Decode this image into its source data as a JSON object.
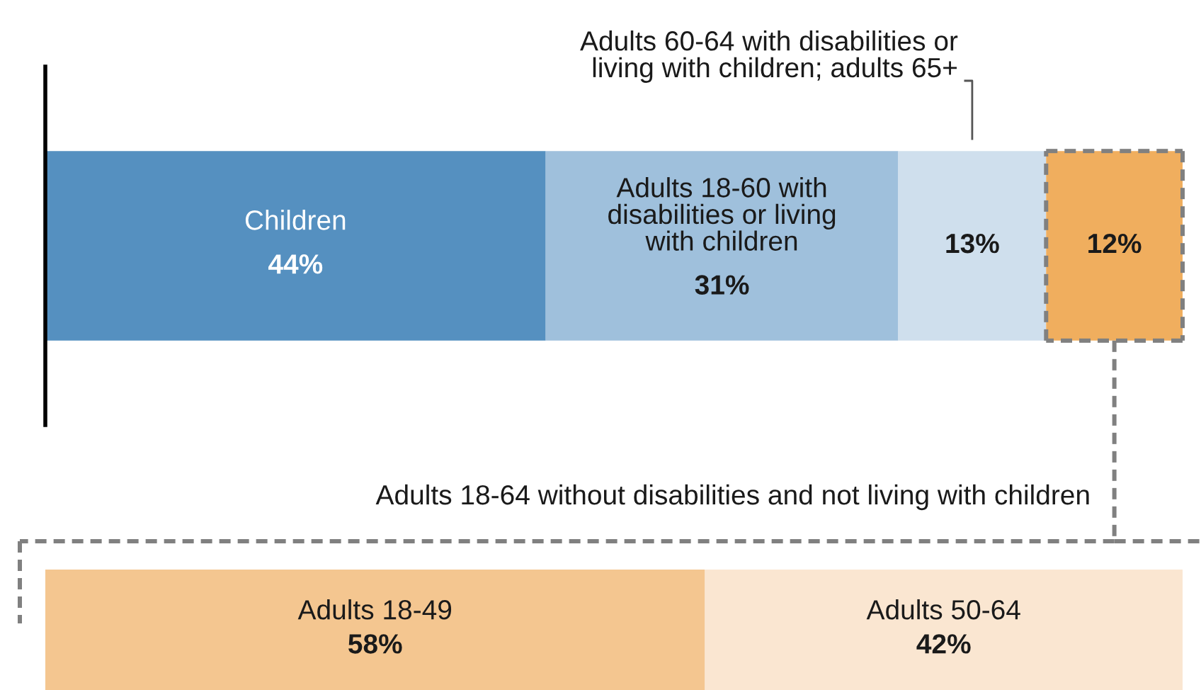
{
  "chart_data": [
    {
      "type": "bar",
      "orientation": "horizontal",
      "stacked": true,
      "categories": [
        null
      ],
      "xlim": [
        0,
        100
      ],
      "tick_labels": false,
      "series": [
        {
          "name": "Children",
          "color": "#5590c0",
          "values": [
            44
          ],
          "value_labels": [
            "44%"
          ]
        },
        {
          "name": "Adults 18-60 with\ndisabilities or living\nwith children",
          "color": "#9fc0dc",
          "values": [
            31
          ],
          "value_labels": [
            "31%"
          ]
        },
        {
          "name": "Adults 60-64 with disabilities or\nliving with children; adults 65+",
          "color": "#cfdfed",
          "values": [
            13
          ],
          "value_labels": [
            "13%"
          ]
        },
        {
          "color": "#f0ae5e",
          "values": [
            12
          ],
          "value_labels": [
            "12%"
          ]
        }
      ]
    },
    {
      "type": "bar",
      "orientation": "horizontal",
      "stacked": true,
      "categories": [
        null
      ],
      "xlim": [
        0,
        100
      ],
      "tick_labels": false,
      "title": "Adults 18-64 without disabilities and not living with children",
      "series": [
        {
          "name": "Adults 18-49",
          "color": "#f4c690",
          "values": [
            58
          ],
          "value_labels": [
            "58%"
          ]
        },
        {
          "name": "Adults 50-64",
          "color": "#fae6d1",
          "values": [
            42
          ],
          "value_labels": [
            "42%"
          ]
        }
      ]
    }
  ]
}
